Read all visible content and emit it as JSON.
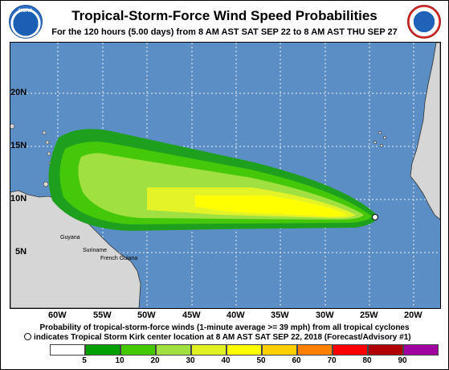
{
  "header": {
    "title": "Tropical-Storm-Force Wind Speed Probabilities",
    "subtitle": "For the 120 hours (5.00 days) from 8 AM AST SAT SEP 22 to 8 AM AST THU SEP 27",
    "left_logo": "NOAA",
    "right_logo_icon": "nws-logo-icon"
  },
  "map": {
    "latitude_labels": [
      "20N",
      "15N",
      "10N",
      "5N"
    ],
    "longitude_labels": [
      "60W",
      "55W",
      "50W",
      "45W",
      "40W",
      "35W",
      "30W",
      "25W",
      "20W"
    ],
    "place_labels": [
      "Guyana",
      "Suriname",
      "French Guiana"
    ],
    "ocean_color": "#5b8ec4",
    "land_color": "#d6d6d6",
    "storm_center_icon": "storm-center-circle-icon"
  },
  "legend": {
    "title": "Probability of tropical-storm-force winds (1-minute average >= 39 mph) from all tropical cyclones",
    "note": "indicates Tropical Storm Kirk center location at 8 AM AST SAT SEP 22, 2018 (Forecast/Advisory #1)",
    "categories": [
      {
        "label": "5",
        "color": "#ffffff"
      },
      {
        "label": "10",
        "color": "#00a000"
      },
      {
        "label": "20",
        "color": "#44c800"
      },
      {
        "label": "30",
        "color": "#a0e040"
      },
      {
        "label": "40",
        "color": "#e0f020"
      },
      {
        "label": "50",
        "color": "#ffff00"
      },
      {
        "label": "60",
        "color": "#ffd000"
      },
      {
        "label": "70",
        "color": "#ff8000"
      },
      {
        "label": "80",
        "color": "#ff0000"
      },
      {
        "label": "90",
        "color": "#b00000"
      },
      {
        "label": "",
        "color": "#a000a0"
      }
    ]
  }
}
